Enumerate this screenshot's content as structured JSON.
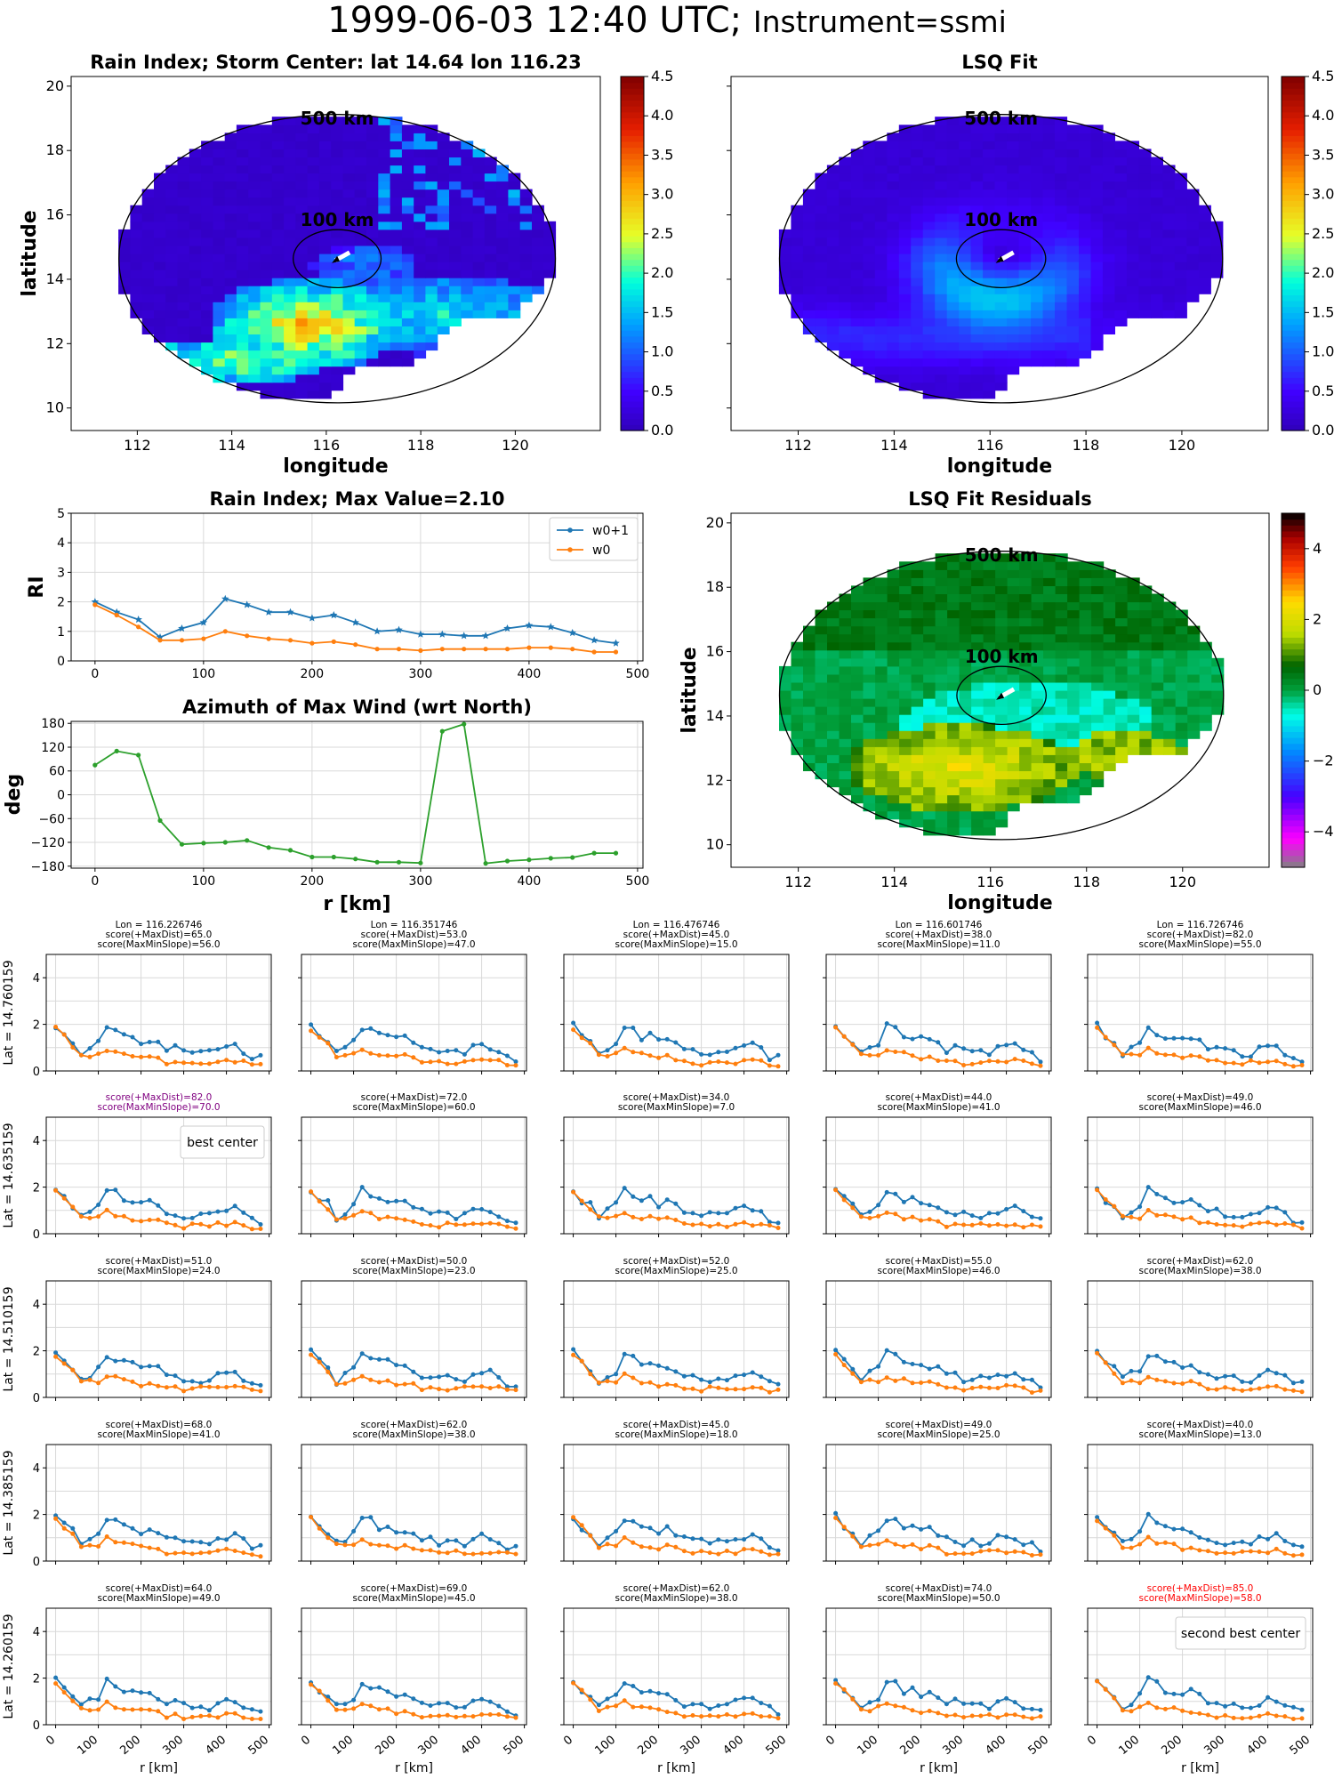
{
  "page_title": {
    "time": "1999-06-03 12:40 UTC;",
    "instrument": "Instrument=ssmi"
  },
  "colors": {
    "w0p1": "#1f77b4",
    "w0": "#ff7f0e",
    "azimuth": "#2ca02c",
    "best": "#800080",
    "second_best": "#ff0000"
  },
  "chart_data": [
    {
      "id": "rain-index-map",
      "type": "heatmap",
      "title": "Rain Index; Storm Center: lat 14.64 lon 116.23",
      "xlabel": "longitude",
      "ylabel": "latitude",
      "xlim": [
        110.6,
        121.8
      ],
      "ylim": [
        9.3,
        20.3
      ],
      "xticks": [
        112,
        114,
        116,
        118,
        120
      ],
      "yticks": [
        10,
        12,
        14,
        16,
        18,
        20
      ],
      "colorbar": {
        "min": 0.0,
        "max": 4.5,
        "ticks": [
          "0.0",
          "0.5",
          "1.0",
          "1.5",
          "2.0",
          "2.5",
          "3.0",
          "3.5",
          "4.0",
          "4.5"
        ],
        "colormap": "jet"
      },
      "rings": [
        {
          "label": "500 km",
          "radius_km": 500
        },
        {
          "label": "100 km",
          "radius_km": 100
        }
      ],
      "center": {
        "lat": 14.64,
        "lon": 116.23
      },
      "field": "rain_index"
    },
    {
      "id": "lsq-fit-map",
      "type": "heatmap",
      "title": "LSQ Fit",
      "xlabel": "longitude",
      "xlim": [
        110.6,
        121.8
      ],
      "ylim": [
        9.3,
        20.3
      ],
      "xticks": [
        112,
        114,
        116,
        118,
        120
      ],
      "colorbar": {
        "min": 0.0,
        "max": 4.5,
        "ticks": [
          "0.0",
          "0.5",
          "1.0",
          "1.5",
          "2.0",
          "2.5",
          "3.0",
          "3.5",
          "4.0",
          "4.5"
        ],
        "colormap": "jet"
      },
      "rings": [
        {
          "label": "500 km",
          "radius_km": 500
        },
        {
          "label": "100 km",
          "radius_km": 100
        }
      ],
      "center": {
        "lat": 14.64,
        "lon": 116.23
      },
      "field": "lsq_fit"
    },
    {
      "id": "rain-index-profile",
      "type": "line",
      "title": "Rain Index; Max Value=2.10",
      "ylabel": "RI",
      "xlim": [
        -22,
        505
      ],
      "ylim": [
        0,
        5
      ],
      "xticks": [
        0,
        100,
        200,
        300,
        400,
        500
      ],
      "yticks": [
        0,
        1,
        2,
        3,
        4,
        5
      ],
      "legend": "top-right",
      "x": [
        0,
        20,
        40,
        60,
        80,
        100,
        120,
        140,
        160,
        180,
        200,
        220,
        240,
        260,
        280,
        300,
        320,
        340,
        360,
        380,
        400,
        420,
        440,
        460,
        480
      ],
      "series": [
        {
          "name": "w0+1",
          "values": [
            2.0,
            1.65,
            1.4,
            0.8,
            1.1,
            1.3,
            2.1,
            1.9,
            1.65,
            1.65,
            1.45,
            1.55,
            1.3,
            1.0,
            1.05,
            0.9,
            0.9,
            0.85,
            0.85,
            1.1,
            1.2,
            1.15,
            0.95,
            0.7,
            0.6
          ]
        },
        {
          "name": "w0",
          "values": [
            1.9,
            1.55,
            1.15,
            0.7,
            0.7,
            0.75,
            1.0,
            0.85,
            0.75,
            0.7,
            0.6,
            0.65,
            0.55,
            0.4,
            0.4,
            0.35,
            0.4,
            0.4,
            0.4,
            0.4,
            0.45,
            0.45,
            0.4,
            0.3,
            0.3
          ]
        }
      ]
    },
    {
      "id": "azimuth-profile",
      "type": "line",
      "title": "Azimuth of Max Wind (wrt North)",
      "xlabel": "r [km]",
      "ylabel": "deg",
      "xlim": [
        -22,
        505
      ],
      "ylim": [
        -185,
        185
      ],
      "xticks": [
        0,
        100,
        200,
        300,
        400,
        500
      ],
      "yticks": [
        180,
        120,
        60,
        0,
        -60,
        -120,
        -180
      ],
      "x": [
        0,
        20,
        40,
        60,
        80,
        100,
        120,
        140,
        160,
        180,
        200,
        220,
        240,
        260,
        280,
        300,
        320,
        340,
        360,
        380,
        400,
        420,
        440,
        460,
        480
      ],
      "series": [
        {
          "values": [
            75,
            110,
            100,
            -65,
            -125,
            -122,
            -120,
            -115,
            -133,
            -140,
            -157,
            -157,
            -162,
            -170,
            -170,
            -172,
            160,
            178,
            -173,
            -167,
            -164,
            -160,
            -158,
            -147,
            -147
          ]
        }
      ]
    },
    {
      "id": "lsq-residual-map",
      "type": "heatmap",
      "title": "LSQ Fit Residuals",
      "xlabel": "longitude",
      "ylabel": "latitude",
      "xlim": [
        110.6,
        121.8
      ],
      "ylim": [
        9.3,
        20.3
      ],
      "xticks": [
        112,
        114,
        116,
        118,
        120
      ],
      "yticks": [
        10,
        12,
        14,
        16,
        18,
        20
      ],
      "colorbar": {
        "min": -5,
        "max": 5,
        "ticks": [
          "4",
          "2",
          "0",
          "−2",
          "−4"
        ],
        "colormap": "diverging"
      },
      "rings": [
        {
          "label": "500 km",
          "radius_km": 500
        },
        {
          "label": "100 km",
          "radius_km": 100
        }
      ],
      "center": {
        "lat": 14.64,
        "lon": 116.23
      },
      "field": "residual"
    },
    {
      "id": "grid-panels",
      "type": "line",
      "xlabel": "r [km]",
      "ylim": [
        0,
        5
      ],
      "xlim": [
        -22,
        505
      ],
      "xticks": [
        "0",
        "100",
        "200",
        "300",
        "400",
        "500"
      ],
      "yticks": [
        "0",
        "2",
        "4"
      ],
      "col_titles": [
        "Lon = 116.226746",
        "Lon = 116.351746",
        "Lon = 116.476746",
        "Lon = 116.601746",
        "Lon = 116.726746"
      ],
      "row_labels": [
        "Lat = 14.760159",
        "Lat = 14.635159",
        "Lat = 14.510159",
        "Lat = 14.385159",
        "Lat = 14.260159"
      ],
      "x": [
        0,
        20,
        40,
        60,
        80,
        100,
        120,
        140,
        160,
        180,
        200,
        220,
        240,
        260,
        280,
        300,
        320,
        340,
        360,
        380,
        400,
        420,
        440,
        460,
        480
      ],
      "panels": [
        {
          "score_line1": "score(+MaxDist)=65.0",
          "score_line2": "score(MaxMinSlope)=56.0"
        },
        {
          "score_line1": "score(+MaxDist)=53.0",
          "score_line2": "score(MaxMinSlope)=47.0"
        },
        {
          "score_line1": "score(+MaxDist)=45.0",
          "score_line2": "score(MaxMinSlope)=15.0"
        },
        {
          "score_line1": "score(+MaxDist)=38.0",
          "score_line2": "score(MaxMinSlope)=11.0"
        },
        {
          "score_line1": "score(+MaxDist)=82.0",
          "score_line2": "score(MaxMinSlope)=55.0"
        },
        {
          "score_line1": "score(+MaxDist)=82.0",
          "score_line2": "score(MaxMinSlope)=70.0",
          "highlight": "best",
          "legend": "best center"
        },
        {
          "score_line1": "score(+MaxDist)=72.0",
          "score_line2": "score(MaxMinSlope)=60.0"
        },
        {
          "score_line1": "score(+MaxDist)=34.0",
          "score_line2": "score(MaxMinSlope)=7.0"
        },
        {
          "score_line1": "score(+MaxDist)=44.0",
          "score_line2": "score(MaxMinSlope)=41.0"
        },
        {
          "score_line1": "score(+MaxDist)=49.0",
          "score_line2": "score(MaxMinSlope)=46.0"
        },
        {
          "score_line1": "score(+MaxDist)=51.0",
          "score_line2": "score(MaxMinSlope)=24.0"
        },
        {
          "score_line1": "score(+MaxDist)=50.0",
          "score_line2": "score(MaxMinSlope)=23.0"
        },
        {
          "score_line1": "score(+MaxDist)=52.0",
          "score_line2": "score(MaxMinSlope)=25.0"
        },
        {
          "score_line1": "score(+MaxDist)=55.0",
          "score_line2": "score(MaxMinSlope)=46.0"
        },
        {
          "score_line1": "score(+MaxDist)=62.0",
          "score_line2": "score(MaxMinSlope)=38.0"
        },
        {
          "score_line1": "score(+MaxDist)=68.0",
          "score_line2": "score(MaxMinSlope)=41.0"
        },
        {
          "score_line1": "score(+MaxDist)=62.0",
          "score_line2": "score(MaxMinSlope)=38.0"
        },
        {
          "score_line1": "score(+MaxDist)=45.0",
          "score_line2": "score(MaxMinSlope)=18.0"
        },
        {
          "score_line1": "score(+MaxDist)=49.0",
          "score_line2": "score(MaxMinSlope)=25.0"
        },
        {
          "score_line1": "score(+MaxDist)=40.0",
          "score_line2": "score(MaxMinSlope)=13.0"
        },
        {
          "score_line1": "score(+MaxDist)=64.0",
          "score_line2": "score(MaxMinSlope)=49.0"
        },
        {
          "score_line1": "score(+MaxDist)=69.0",
          "score_line2": "score(MaxMinSlope)=45.0"
        },
        {
          "score_line1": "score(+MaxDist)=62.0",
          "score_line2": "score(MaxMinSlope)=38.0"
        },
        {
          "score_line1": "score(+MaxDist)=74.0",
          "score_line2": "score(MaxMinSlope)=50.0"
        },
        {
          "score_line1": "score(+MaxDist)=85.0",
          "score_line2": "score(MaxMinSlope)=58.0",
          "highlight": "second",
          "legend": "second best center"
        }
      ]
    }
  ]
}
